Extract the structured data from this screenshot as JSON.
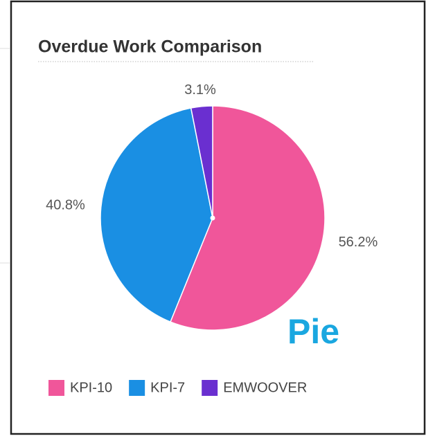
{
  "chart_data": {
    "type": "pie",
    "title": "Overdue Work Comparison",
    "categories": [
      "KPI-10",
      "KPI-7",
      "EMWOOVER"
    ],
    "values": [
      56.2,
      40.8,
      3.1
    ],
    "value_labels": [
      "56.2%",
      "40.8%",
      "3.1%"
    ],
    "colors": [
      "#f0569a",
      "#1a8fe3",
      "#6a2fd0"
    ],
    "annotation": "Pie",
    "legend": "bottom"
  }
}
